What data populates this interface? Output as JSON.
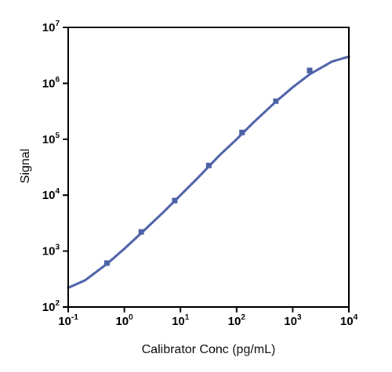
{
  "chart_data": {
    "type": "scatter",
    "title": "",
    "xlabel": "Calibrator Conc (pg/mL)",
    "ylabel": "Signal",
    "xscale": "log",
    "yscale": "log",
    "xlim": [
      0.1,
      10000
    ],
    "ylim": [
      100,
      10000000
    ],
    "x_ticks": [
      {
        "base": "10",
        "exp": "-1"
      },
      {
        "base": "10",
        "exp": "0"
      },
      {
        "base": "10",
        "exp": "1"
      },
      {
        "base": "10",
        "exp": "2"
      },
      {
        "base": "10",
        "exp": "3"
      },
      {
        "base": "10",
        "exp": "4"
      }
    ],
    "y_ticks": [
      {
        "base": "10",
        "exp": "2"
      },
      {
        "base": "10",
        "exp": "3"
      },
      {
        "base": "10",
        "exp": "4"
      },
      {
        "base": "10",
        "exp": "5"
      },
      {
        "base": "10",
        "exp": "6"
      },
      {
        "base": "10",
        "exp": "7"
      }
    ],
    "grid": false,
    "series": [
      {
        "type": "scatter",
        "color": "#4a5fa6",
        "marker": "square",
        "x": [
          0.49,
          2.0,
          7.9,
          32,
          125,
          500,
          2000
        ],
        "y": [
          610,
          2200,
          8000,
          34000,
          132000,
          480000,
          1700000
        ]
      },
      {
        "type": "line",
        "color": "#4a5fa6",
        "fit": "4PL",
        "curve_x": [
          0.1,
          0.2,
          0.5,
          1,
          2,
          5,
          10,
          20,
          50,
          100,
          200,
          500,
          1000,
          2000,
          5000,
          10000
        ],
        "curve_y": [
          220,
          300,
          600,
          1100,
          2100,
          5000,
          10000,
          20000,
          52000,
          100000,
          200000,
          470000,
          850000,
          1450000,
          2450000,
          3000000
        ]
      }
    ]
  }
}
